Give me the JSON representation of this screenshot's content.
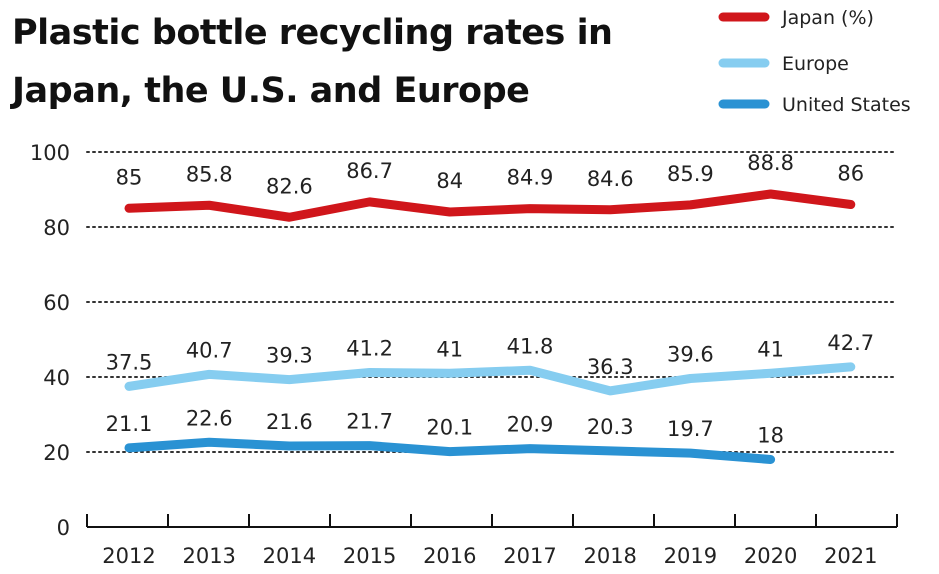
{
  "title": "Plastic bottle recycling rates in Japan, the U.S. and Europe",
  "colors": {
    "japan": "#d0161b",
    "europe": "#86cdf0",
    "us": "#2a92d3",
    "grid": "#333333"
  },
  "chart_data": {
    "type": "line",
    "title": "Plastic bottle recycling rates in Japan, the U.S. and Europe",
    "xlabel": "",
    "ylabel": "",
    "categories": [
      "2012",
      "2013",
      "2014",
      "2015",
      "2016",
      "2017",
      "2018",
      "2019",
      "2020",
      "2021"
    ],
    "ylim": [
      0,
      100
    ],
    "yticks": [
      0,
      20,
      40,
      60,
      80,
      100
    ],
    "grid": "dotted horizontal",
    "legend_position": "top-right",
    "series": [
      {
        "name": "Japan (%)",
        "color": "#d0161b",
        "values": [
          85,
          85.8,
          82.6,
          86.7,
          84,
          84.9,
          84.6,
          85.9,
          88.8,
          86
        ],
        "labels": [
          "85",
          "85.8",
          "82.6",
          "86.7",
          "84",
          "84.9",
          "84.6",
          "85.9",
          "88.8",
          "86"
        ]
      },
      {
        "name": "Europe",
        "color": "#86cdf0",
        "values": [
          37.5,
          40.7,
          39.3,
          41.2,
          41,
          41.8,
          36.3,
          39.6,
          41,
          42.7
        ],
        "labels": [
          "37.5",
          "40.7",
          "39.3",
          "41.2",
          "41",
          "41.8",
          "36.3",
          "39.6",
          "41",
          "42.7"
        ]
      },
      {
        "name": "United States",
        "color": "#2a92d3",
        "values": [
          21.1,
          22.6,
          21.6,
          21.7,
          20.1,
          20.9,
          20.3,
          19.7,
          18,
          null
        ],
        "labels": [
          "21.1",
          "22.6",
          "21.6",
          "21.7",
          "20.1",
          "20.9",
          "20.3",
          "19.7",
          "18",
          null
        ]
      }
    ]
  }
}
